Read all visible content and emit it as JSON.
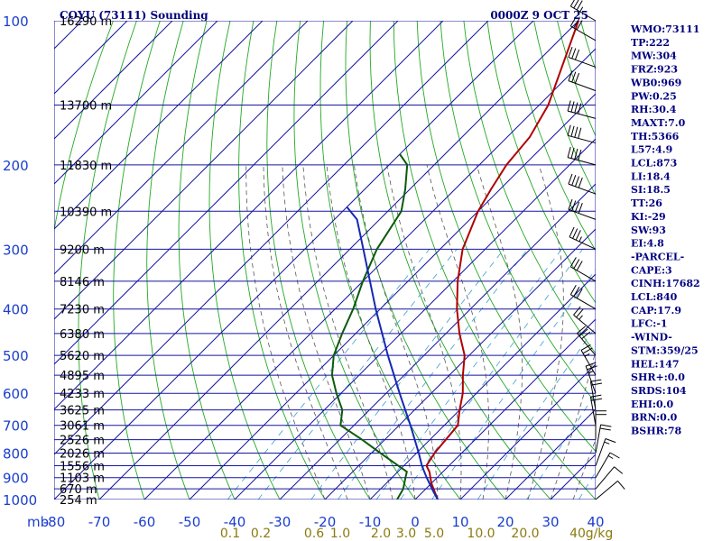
{
  "header": {
    "title": "COYU (73111) Sounding",
    "datetime": "0000Z  9 OCT 25"
  },
  "colors": {
    "isobar_grid": "#1515a0",
    "dry_adiabat": "#23a823",
    "temperature": "#b00000",
    "dewpoint": "#0c5a0c",
    "parcel": "#1428b4",
    "moist_adiabat": "#555555",
    "mixing_ratio": "#3aa0d0",
    "pressure_label": "#1a3ecc",
    "mixing_ratio_label": "#8a7a10",
    "index_text": "#000080"
  },
  "indices": [
    "WMO:73111",
    "TP:222",
    "MW:304",
    "FRZ:923",
    "WB0:969",
    "PW:0.25",
    "RH:30.4",
    "MAXT:7.0",
    "TH:5366",
    "L57:4.9",
    "LCL:873",
    "LI:18.4",
    "SI:18.5",
    "TT:26",
    "KI:-29",
    "SW:93",
    "EI:4.8",
    "-PARCEL-",
    "CAPE:3",
    "CINH:17682",
    "LCL:840",
    "CAP:17.9",
    "LFC:-1",
    "-WIND-",
    "STM:359/25",
    "HEL:147",
    "SHR+:0.0",
    "SRDS:104",
    "EHI:0.0",
    "BRN:0.0",
    "BSHR:78"
  ],
  "chart_data": {
    "type": "line",
    "title": "COYU (73111) Sounding",
    "xlabel": "",
    "ylabel": "mb",
    "xlim": [
      -80,
      40
    ],
    "ylim": [
      1000,
      100
    ],
    "y_scale": "log",
    "pressure_levels": [
      100,
      200,
      300,
      400,
      500,
      600,
      700,
      800,
      900,
      1000
    ],
    "temperature_ticks": [
      -80,
      -70,
      -60,
      -50,
      -40,
      -30,
      -20,
      -10,
      0,
      10,
      20,
      30,
      40
    ],
    "height_labels": [
      {
        "p": 100,
        "label": "16290 m"
      },
      {
        "p": 150,
        "label": "13700 m"
      },
      {
        "p": 200,
        "label": "11830 m"
      },
      {
        "p": 250,
        "label": "10390 m"
      },
      {
        "p": 300,
        "label": "9200 m"
      },
      {
        "p": 350,
        "label": "8146 m"
      },
      {
        "p": 400,
        "label": "7230 m"
      },
      {
        "p": 450,
        "label": "6380 m"
      },
      {
        "p": 500,
        "label": "5620 m"
      },
      {
        "p": 550,
        "label": "4895 m"
      },
      {
        "p": 600,
        "label": "4233 m"
      },
      {
        "p": 650,
        "label": "3625 m"
      },
      {
        "p": 700,
        "label": "3061 m"
      },
      {
        "p": 750,
        "label": "2526 m"
      },
      {
        "p": 800,
        "label": "2026 m"
      },
      {
        "p": 850,
        "label": "1556 m"
      },
      {
        "p": 900,
        "label": "1103 m"
      },
      {
        "p": 950,
        "label": "670 m"
      },
      {
        "p": 1000,
        "label": "254 m"
      }
    ],
    "mixing_ratio_labels": [
      "0.1",
      "0.2",
      "0.6",
      "1.0",
      "2.0",
      "3.0",
      "5.0",
      "10.0",
      "20.0",
      "40",
      "g/kg"
    ],
    "mixing_ratio_values": [
      0.1,
      0.2,
      0.6,
      1.0,
      2.0,
      3.0,
      5.0,
      10.0,
      20.0,
      40
    ],
    "grid": true,
    "series": [
      {
        "name": "Temperature",
        "role": "temperature",
        "points": [
          [
            1000,
            5
          ],
          [
            925,
            0
          ],
          [
            875,
            -3
          ],
          [
            850,
            -5
          ],
          [
            800,
            -6
          ],
          [
            700,
            -7
          ],
          [
            650,
            -10
          ],
          [
            600,
            -13
          ],
          [
            550,
            -17
          ],
          [
            500,
            -21
          ],
          [
            450,
            -27
          ],
          [
            400,
            -33
          ],
          [
            350,
            -39
          ],
          [
            300,
            -45
          ],
          [
            250,
            -50
          ],
          [
            225,
            -52
          ],
          [
            200,
            -54
          ],
          [
            175,
            -55
          ],
          [
            150,
            -58
          ],
          [
            100,
            -70
          ]
        ]
      },
      {
        "name": "Dewpoint",
        "role": "dewpoint",
        "points": [
          [
            1000,
            -4
          ],
          [
            950,
            -5
          ],
          [
            900,
            -7
          ],
          [
            875,
            -8
          ],
          [
            800,
            -18
          ],
          [
            750,
            -25
          ],
          [
            700,
            -33
          ],
          [
            650,
            -36
          ],
          [
            600,
            -41
          ],
          [
            550,
            -46
          ],
          [
            500,
            -50
          ],
          [
            450,
            -53
          ],
          [
            400,
            -56
          ],
          [
            350,
            -60
          ],
          [
            300,
            -64
          ],
          [
            250,
            -67
          ],
          [
            225,
            -71
          ],
          [
            200,
            -76
          ],
          [
            190,
            -80
          ]
        ]
      },
      {
        "name": "Parcel",
        "role": "parcel",
        "points": [
          [
            1000,
            5
          ],
          [
            960,
            2.1
          ],
          [
            900,
            -2.3
          ],
          [
            870,
            -4.5
          ],
          [
            850,
            -6
          ],
          [
            800,
            -9.5
          ],
          [
            700,
            -17.5
          ],
          [
            600,
            -27
          ],
          [
            500,
            -38
          ],
          [
            400,
            -51
          ],
          [
            300,
            -67
          ],
          [
            260,
            -75
          ],
          [
            245,
            -80
          ]
        ]
      }
    ],
    "wind_barbs": [
      {
        "p": 100,
        "dir": 300,
        "spd": 35
      },
      {
        "p": 110,
        "dir": 300,
        "spd": 30
      },
      {
        "p": 125,
        "dir": 290,
        "spd": 30
      },
      {
        "p": 140,
        "dir": 290,
        "spd": 30
      },
      {
        "p": 160,
        "dir": 285,
        "spd": 40
      },
      {
        "p": 180,
        "dir": 285,
        "spd": 40
      },
      {
        "p": 200,
        "dir": 285,
        "spd": 40
      },
      {
        "p": 230,
        "dir": 290,
        "spd": 40
      },
      {
        "p": 260,
        "dir": 290,
        "spd": 40
      },
      {
        "p": 300,
        "dir": 295,
        "spd": 35
      },
      {
        "p": 350,
        "dir": 300,
        "spd": 30
      },
      {
        "p": 400,
        "dir": 300,
        "spd": 30
      },
      {
        "p": 450,
        "dir": 310,
        "spd": 25
      },
      {
        "p": 500,
        "dir": 320,
        "spd": 30
      },
      {
        "p": 550,
        "dir": 330,
        "spd": 25
      },
      {
        "p": 600,
        "dir": 340,
        "spd": 25
      },
      {
        "p": 650,
        "dir": 350,
        "spd": 20
      },
      {
        "p": 700,
        "dir": 350,
        "spd": 20
      },
      {
        "p": 750,
        "dir": 0,
        "spd": 20
      },
      {
        "p": 800,
        "dir": 10,
        "spd": 20
      },
      {
        "p": 850,
        "dir": 20,
        "spd": 15
      },
      {
        "p": 900,
        "dir": 30,
        "spd": 15
      },
      {
        "p": 950,
        "dir": 40,
        "spd": 10
      },
      {
        "p": 1000,
        "dir": 50,
        "spd": 10
      }
    ],
    "axis_unit": "mb"
  }
}
